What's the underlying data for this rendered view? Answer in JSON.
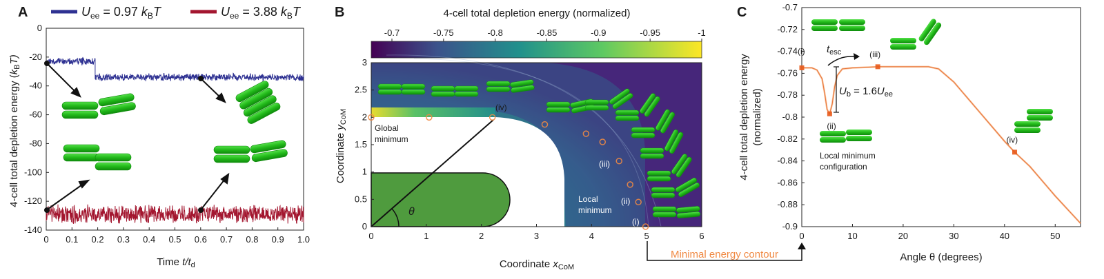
{
  "panels": {
    "a": {
      "letter": "A"
    },
    "b": {
      "letter": "B"
    },
    "c": {
      "letter": "C"
    }
  },
  "colors": {
    "blue": "#2e3192",
    "red": "#a3162f",
    "rod": "#22b91a",
    "rod_dark": "#118a0d",
    "orange": "#f08a44",
    "marker": "#e85a1b",
    "cell": "#4f9b3e"
  },
  "chart_data": [
    {
      "panel": "A",
      "type": "line",
      "xlabel_main": "Time ",
      "xlabel_var": "t/t",
      "xlabel_sub": "d",
      "ylabel_main": "4-cell total depletion energy (",
      "ylabel_var": "k",
      "ylabel_sub": "B",
      "ylabel_end": "T)",
      "xlim": [
        0,
        1.0
      ],
      "ylim": [
        -140,
        0
      ],
      "xticks": [
        "0",
        "0.1",
        "0.2",
        "0.3",
        "0.4",
        "0.5",
        "0.6",
        "0.7",
        "0.8",
        "0.9",
        "1.0"
      ],
      "yticks": [
        "0",
        "-20",
        "-40",
        "-60",
        "-80",
        "-100",
        "-120",
        "-140"
      ],
      "legend": [
        {
          "var": "U",
          "sub": "ee",
          "text": " = 0.97 ",
          "unit": "k",
          "unitsub": "B",
          "unitend": "T"
        },
        {
          "var": "U",
          "sub": "ee",
          "text": " = 3.88 ",
          "unit": "k",
          "unitsub": "B",
          "unitend": "T"
        }
      ],
      "series": [
        {
          "segments": [
            {
              "x0": 0,
              "x1": 0.19,
              "mean": -23,
              "noise": 2
            },
            {
              "x0": 0.19,
              "x1": 1.0,
              "mean": -34,
              "noise": 2
            }
          ]
        },
        {
          "segments": [
            {
              "x0": 0,
              "x1": 1.0,
              "mean": -129,
              "noise": 5
            }
          ]
        }
      ]
    },
    {
      "panel": "B",
      "type": "heatmap",
      "colorbar_title": "4-cell total depletion energy (normalized)",
      "colorbar_ticks": [
        "-0.7",
        "-0.75",
        "-0.8",
        "-0.85",
        "-0.9",
        "-0.95",
        "-1"
      ],
      "xlabel_main": "Coordinate ",
      "xlabel_var": "x",
      "xlabel_sub": "CoM",
      "ylabel_main": "Coordinate ",
      "ylabel_var": "y",
      "ylabel_sub": "CoM",
      "xlim": [
        0,
        6
      ],
      "ylim": [
        0,
        3
      ],
      "xticks": [
        "0",
        "1",
        "2",
        "3",
        "4",
        "5",
        "6"
      ],
      "yticks": [
        "0",
        "0.5",
        "1",
        "1.5",
        "2",
        "2.5",
        "3"
      ],
      "contour_points": [
        {
          "x": 0,
          "y": 2
        },
        {
          "x": 1.05,
          "y": 2
        },
        {
          "x": 2.2,
          "y": 2
        },
        {
          "x": 3.15,
          "y": 1.87
        },
        {
          "x": 3.9,
          "y": 1.7
        },
        {
          "x": 4.2,
          "y": 1.55
        },
        {
          "x": 4.5,
          "y": 1.2
        },
        {
          "x": 4.7,
          "y": 0.77
        },
        {
          "x": 4.85,
          "y": 0.45
        },
        {
          "x": 4.98,
          "y": 0
        }
      ],
      "labels": {
        "global": "Global",
        "global2": "minimum",
        "local": "Local",
        "local2": "minimum",
        "theta": "θ",
        "iv": "(iv)",
        "iii": "(iii)",
        "ii": "(ii)",
        "i": "(i)"
      },
      "contour_label": "Minimal energy contour"
    },
    {
      "panel": "C",
      "type": "line",
      "xlabel": "Angle θ (degrees)",
      "ylabel1": "4-cell total depletion energy",
      "ylabel2": "(normalized)",
      "xlim": [
        0,
        55
      ],
      "ylim": [
        -0.9,
        -0.7
      ],
      "xticks": [
        "0",
        "10",
        "20",
        "30",
        "40",
        "50"
      ],
      "yticks": [
        "-0.7",
        "-0.72",
        "-0.74",
        "-0.76",
        "-0.78",
        "-0.8",
        "-0.82",
        "-0.84",
        "-0.86",
        "-0.88",
        "-0.9"
      ],
      "x": [
        0,
        2,
        3,
        4,
        4.5,
        5,
        5.5,
        6,
        6.5,
        7,
        8,
        10,
        15,
        20,
        25,
        27,
        30,
        35,
        40,
        42,
        45,
        50,
        55
      ],
      "y": [
        -0.755,
        -0.755,
        -0.757,
        -0.765,
        -0.778,
        -0.793,
        -0.797,
        -0.788,
        -0.772,
        -0.762,
        -0.756,
        -0.755,
        -0.754,
        -0.754,
        -0.754,
        -0.756,
        -0.768,
        -0.795,
        -0.822,
        -0.832,
        -0.845,
        -0.872,
        -0.897
      ],
      "markers": [
        {
          "x": 0,
          "y": -0.755,
          "label": "(i)"
        },
        {
          "x": 5.5,
          "y": -0.797,
          "label": "(ii)"
        },
        {
          "x": 15,
          "y": -0.754,
          "label": "(iii)"
        },
        {
          "x": 42,
          "y": -0.832,
          "label": "(iv)"
        }
      ],
      "annot": {
        "tesc_var": "t",
        "tesc_sub": "esc",
        "ub_var": "U",
        "ub_sub": "b",
        "ub_text": " = 1.6",
        "ub_var2": "U",
        "ub_sub2": "ee",
        "local1": "Local minimum",
        "local2": "configuration"
      }
    }
  ]
}
